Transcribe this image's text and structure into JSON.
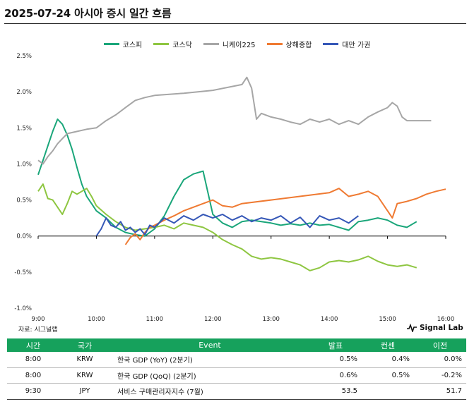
{
  "title": "2025-07-24 아시아 증시 일간 흐름",
  "source": "자료: 시그널랩",
  "brand": "Signal Lab",
  "brand_icon": "signal-wave-icon",
  "chart_data": {
    "type": "line",
    "xlabel": "",
    "ylabel": "",
    "x_ticks": [
      "9:00",
      "10:00",
      "11:00",
      "12:00",
      "13:00",
      "14:00",
      "15:00",
      "16:00"
    ],
    "y_ticks": [
      "2.5%",
      "2.0%",
      "1.5%",
      "1.0%",
      "0.5%",
      "0.0%",
      "-0.5%",
      "-1.0%"
    ],
    "ylim": [
      -1.0,
      2.5
    ],
    "xlim": [
      "9:00",
      "16:00"
    ],
    "grid": false,
    "legend_position": "top",
    "series": [
      {
        "name": "코스피",
        "color": "#1aa67a",
        "points": [
          [
            "9:00",
            0.85
          ],
          [
            "9:05",
            1.05
          ],
          [
            "9:10",
            1.25
          ],
          [
            "9:15",
            1.45
          ],
          [
            "9:20",
            1.62
          ],
          [
            "9:25",
            1.55
          ],
          [
            "9:30",
            1.4
          ],
          [
            "9:35",
            1.2
          ],
          [
            "9:40",
            0.95
          ],
          [
            "9:45",
            0.72
          ],
          [
            "9:50",
            0.55
          ],
          [
            "9:55",
            0.45
          ],
          [
            "10:00",
            0.35
          ],
          [
            "10:10",
            0.25
          ],
          [
            "10:20",
            0.12
          ],
          [
            "10:30",
            0.05
          ],
          [
            "10:40",
            0.02
          ],
          [
            "10:50",
            0.0
          ],
          [
            "11:00",
            0.1
          ],
          [
            "11:10",
            0.28
          ],
          [
            "11:20",
            0.55
          ],
          [
            "11:30",
            0.78
          ],
          [
            "11:40",
            0.86
          ],
          [
            "11:50",
            0.9
          ],
          [
            "11:55",
            0.6
          ],
          [
            "12:00",
            0.3
          ],
          [
            "12:10",
            0.18
          ],
          [
            "12:20",
            0.12
          ],
          [
            "12:30",
            0.2
          ],
          [
            "12:40",
            0.22
          ],
          [
            "12:50",
            0.2
          ],
          [
            "13:00",
            0.18
          ],
          [
            "13:10",
            0.15
          ],
          [
            "13:20",
            0.17
          ],
          [
            "13:30",
            0.15
          ],
          [
            "13:40",
            0.18
          ],
          [
            "13:50",
            0.15
          ],
          [
            "14:00",
            0.16
          ],
          [
            "14:10",
            0.12
          ],
          [
            "14:20",
            0.08
          ],
          [
            "14:30",
            0.2
          ],
          [
            "14:40",
            0.22
          ],
          [
            "14:50",
            0.25
          ],
          [
            "15:00",
            0.22
          ],
          [
            "15:10",
            0.15
          ],
          [
            "15:20",
            0.12
          ],
          [
            "15:30",
            0.2
          ]
        ]
      },
      {
        "name": "코스닥",
        "color": "#8ec641",
        "points": [
          [
            "9:00",
            0.62
          ],
          [
            "9:05",
            0.72
          ],
          [
            "9:10",
            0.52
          ],
          [
            "9:15",
            0.5
          ],
          [
            "9:20",
            0.4
          ],
          [
            "9:25",
            0.3
          ],
          [
            "9:30",
            0.45
          ],
          [
            "9:35",
            0.62
          ],
          [
            "9:40",
            0.58
          ],
          [
            "9:45",
            0.62
          ],
          [
            "9:50",
            0.66
          ],
          [
            "9:55",
            0.55
          ],
          [
            "10:00",
            0.42
          ],
          [
            "10:10",
            0.3
          ],
          [
            "10:20",
            0.2
          ],
          [
            "10:30",
            0.12
          ],
          [
            "10:40",
            0.08
          ],
          [
            "10:50",
            0.1
          ],
          [
            "11:00",
            0.12
          ],
          [
            "11:10",
            0.15
          ],
          [
            "11:20",
            0.1
          ],
          [
            "11:30",
            0.18
          ],
          [
            "11:40",
            0.15
          ],
          [
            "11:50",
            0.12
          ],
          [
            "12:00",
            0.05
          ],
          [
            "12:10",
            -0.05
          ],
          [
            "12:20",
            -0.12
          ],
          [
            "12:30",
            -0.18
          ],
          [
            "12:40",
            -0.28
          ],
          [
            "12:50",
            -0.32
          ],
          [
            "13:00",
            -0.3
          ],
          [
            "13:10",
            -0.32
          ],
          [
            "13:20",
            -0.36
          ],
          [
            "13:30",
            -0.4
          ],
          [
            "13:40",
            -0.48
          ],
          [
            "13:50",
            -0.44
          ],
          [
            "14:00",
            -0.36
          ],
          [
            "14:10",
            -0.34
          ],
          [
            "14:20",
            -0.36
          ],
          [
            "14:30",
            -0.33
          ],
          [
            "14:40",
            -0.28
          ],
          [
            "14:50",
            -0.35
          ],
          [
            "15:00",
            -0.4
          ],
          [
            "15:10",
            -0.42
          ],
          [
            "15:20",
            -0.4
          ],
          [
            "15:30",
            -0.44
          ]
        ]
      },
      {
        "name": "니케이225",
        "color": "#a6a6a6",
        "points": [
          [
            "9:00",
            1.05
          ],
          [
            "9:05",
            1.0
          ],
          [
            "9:10",
            1.1
          ],
          [
            "9:15",
            1.18
          ],
          [
            "9:20",
            1.28
          ],
          [
            "9:25",
            1.35
          ],
          [
            "9:30",
            1.42
          ],
          [
            "9:40",
            1.45
          ],
          [
            "9:50",
            1.48
          ],
          [
            "10:00",
            1.5
          ],
          [
            "10:10",
            1.6
          ],
          [
            "10:20",
            1.68
          ],
          [
            "10:30",
            1.78
          ],
          [
            "10:40",
            1.88
          ],
          [
            "10:50",
            1.92
          ],
          [
            "11:00",
            1.95
          ],
          [
            "11:30",
            1.98
          ],
          [
            "12:00",
            2.02
          ],
          [
            "12:30",
            2.1
          ],
          [
            "12:35",
            2.2
          ],
          [
            "12:40",
            2.05
          ],
          [
            "12:45",
            1.62
          ],
          [
            "12:50",
            1.7
          ],
          [
            "13:00",
            1.65
          ],
          [
            "13:10",
            1.62
          ],
          [
            "13:20",
            1.58
          ],
          [
            "13:30",
            1.55
          ],
          [
            "13:40",
            1.62
          ],
          [
            "13:50",
            1.58
          ],
          [
            "14:00",
            1.62
          ],
          [
            "14:10",
            1.55
          ],
          [
            "14:20",
            1.6
          ],
          [
            "14:30",
            1.55
          ],
          [
            "14:40",
            1.65
          ],
          [
            "14:50",
            1.72
          ],
          [
            "15:00",
            1.78
          ],
          [
            "15:05",
            1.85
          ],
          [
            "15:10",
            1.8
          ],
          [
            "15:15",
            1.65
          ],
          [
            "15:20",
            1.6
          ],
          [
            "15:30",
            1.6
          ],
          [
            "15:45",
            1.6
          ]
        ]
      },
      {
        "name": "상해종합",
        "color": "#ef7a32",
        "points": [
          [
            "10:30",
            -0.12
          ],
          [
            "10:35",
            -0.02
          ],
          [
            "10:40",
            0.03
          ],
          [
            "10:45",
            -0.05
          ],
          [
            "10:50",
            0.05
          ],
          [
            "10:55",
            0.12
          ],
          [
            "11:00",
            0.15
          ],
          [
            "11:10",
            0.22
          ],
          [
            "11:20",
            0.28
          ],
          [
            "11:30",
            0.35
          ],
          [
            "11:40",
            0.4
          ],
          [
            "11:50",
            0.45
          ],
          [
            "12:00",
            0.5
          ],
          [
            "12:10",
            0.42
          ],
          [
            "12:20",
            0.4
          ],
          [
            "12:30",
            0.45
          ],
          [
            "13:00",
            0.5
          ],
          [
            "14:00",
            0.6
          ],
          [
            "14:10",
            0.66
          ],
          [
            "14:20",
            0.55
          ],
          [
            "14:30",
            0.58
          ],
          [
            "14:40",
            0.62
          ],
          [
            "14:50",
            0.55
          ],
          [
            "15:00",
            0.35
          ],
          [
            "15:05",
            0.25
          ],
          [
            "15:10",
            0.45
          ],
          [
            "15:20",
            0.48
          ],
          [
            "15:30",
            0.52
          ],
          [
            "15:40",
            0.58
          ],
          [
            "15:50",
            0.62
          ],
          [
            "16:00",
            0.65
          ]
        ]
      },
      {
        "name": "대만 가권",
        "color": "#3557b7",
        "points": [
          [
            "10:00",
            0.0
          ],
          [
            "10:05",
            0.1
          ],
          [
            "10:10",
            0.25
          ],
          [
            "10:15",
            0.15
          ],
          [
            "10:20",
            0.12
          ],
          [
            "10:25",
            0.2
          ],
          [
            "10:30",
            0.08
          ],
          [
            "10:35",
            0.12
          ],
          [
            "10:40",
            0.05
          ],
          [
            "10:45",
            0.1
          ],
          [
            "10:50",
            0.02
          ],
          [
            "10:55",
            0.15
          ],
          [
            "11:00",
            0.12
          ],
          [
            "11:10",
            0.25
          ],
          [
            "11:20",
            0.18
          ],
          [
            "11:30",
            0.28
          ],
          [
            "11:40",
            0.22
          ],
          [
            "11:50",
            0.3
          ],
          [
            "12:00",
            0.25
          ],
          [
            "12:10",
            0.3
          ],
          [
            "12:20",
            0.22
          ],
          [
            "12:30",
            0.28
          ],
          [
            "12:40",
            0.2
          ],
          [
            "12:50",
            0.25
          ],
          [
            "13:00",
            0.22
          ],
          [
            "13:10",
            0.28
          ],
          [
            "13:20",
            0.18
          ],
          [
            "13:30",
            0.26
          ],
          [
            "13:40",
            0.12
          ],
          [
            "13:50",
            0.28
          ],
          [
            "14:00",
            0.22
          ],
          [
            "14:10",
            0.25
          ],
          [
            "14:20",
            0.18
          ],
          [
            "14:30",
            0.28
          ]
        ]
      }
    ]
  },
  "table": {
    "headers": {
      "time": "시간",
      "country": "국가",
      "event": "Event",
      "actual": "발표",
      "consensus": "컨센",
      "previous": "이전"
    },
    "rows": [
      {
        "time": "8:00",
        "country": "KRW",
        "event": "한국 GDP (YoY) (2분기)",
        "actual": "0.5%",
        "consensus": "0.4%",
        "previous": "0.0%"
      },
      {
        "time": "8:00",
        "country": "KRW",
        "event": "한국 GDP (QoQ) (2분기)",
        "actual": "0.6%",
        "consensus": "0.5%",
        "previous": "-0.2%"
      },
      {
        "time": "9:30",
        "country": "JPY",
        "event": "서비스 구매관리자지수 (7월)",
        "actual": "53.5",
        "consensus": "",
        "previous": "51.7"
      }
    ]
  }
}
